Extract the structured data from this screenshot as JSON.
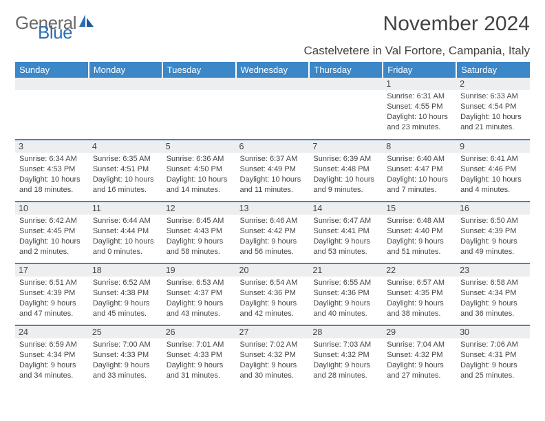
{
  "brand": {
    "name_a": "General",
    "name_b": "Blue",
    "color_a": "#6a6a6a",
    "color_b": "#2a6fb5"
  },
  "title": "November 2024",
  "location": "Castelvetere in Val Fortore, Campania, Italy",
  "dow": [
    "Sunday",
    "Monday",
    "Tuesday",
    "Wednesday",
    "Thursday",
    "Friday",
    "Saturday"
  ],
  "colors": {
    "header_bg": "#3b87c8",
    "header_text": "#ffffff",
    "row_border": "#3b87c8",
    "daynum_bg": "#eceef0",
    "text": "#444444",
    "background": "#ffffff"
  },
  "layout": {
    "first_weekday_index": 5,
    "days_in_month": 30,
    "weeks": 5
  },
  "days": {
    "1": {
      "sunrise": "6:31 AM",
      "sunset": "4:55 PM",
      "daylight": "10 hours and 23 minutes."
    },
    "2": {
      "sunrise": "6:33 AM",
      "sunset": "4:54 PM",
      "daylight": "10 hours and 21 minutes."
    },
    "3": {
      "sunrise": "6:34 AM",
      "sunset": "4:53 PM",
      "daylight": "10 hours and 18 minutes."
    },
    "4": {
      "sunrise": "6:35 AM",
      "sunset": "4:51 PM",
      "daylight": "10 hours and 16 minutes."
    },
    "5": {
      "sunrise": "6:36 AM",
      "sunset": "4:50 PM",
      "daylight": "10 hours and 14 minutes."
    },
    "6": {
      "sunrise": "6:37 AM",
      "sunset": "4:49 PM",
      "daylight": "10 hours and 11 minutes."
    },
    "7": {
      "sunrise": "6:39 AM",
      "sunset": "4:48 PM",
      "daylight": "10 hours and 9 minutes."
    },
    "8": {
      "sunrise": "6:40 AM",
      "sunset": "4:47 PM",
      "daylight": "10 hours and 7 minutes."
    },
    "9": {
      "sunrise": "6:41 AM",
      "sunset": "4:46 PM",
      "daylight": "10 hours and 4 minutes."
    },
    "10": {
      "sunrise": "6:42 AM",
      "sunset": "4:45 PM",
      "daylight": "10 hours and 2 minutes."
    },
    "11": {
      "sunrise": "6:44 AM",
      "sunset": "4:44 PM",
      "daylight": "10 hours and 0 minutes."
    },
    "12": {
      "sunrise": "6:45 AM",
      "sunset": "4:43 PM",
      "daylight": "9 hours and 58 minutes."
    },
    "13": {
      "sunrise": "6:46 AM",
      "sunset": "4:42 PM",
      "daylight": "9 hours and 56 minutes."
    },
    "14": {
      "sunrise": "6:47 AM",
      "sunset": "4:41 PM",
      "daylight": "9 hours and 53 minutes."
    },
    "15": {
      "sunrise": "6:48 AM",
      "sunset": "4:40 PM",
      "daylight": "9 hours and 51 minutes."
    },
    "16": {
      "sunrise": "6:50 AM",
      "sunset": "4:39 PM",
      "daylight": "9 hours and 49 minutes."
    },
    "17": {
      "sunrise": "6:51 AM",
      "sunset": "4:39 PM",
      "daylight": "9 hours and 47 minutes."
    },
    "18": {
      "sunrise": "6:52 AM",
      "sunset": "4:38 PM",
      "daylight": "9 hours and 45 minutes."
    },
    "19": {
      "sunrise": "6:53 AM",
      "sunset": "4:37 PM",
      "daylight": "9 hours and 43 minutes."
    },
    "20": {
      "sunrise": "6:54 AM",
      "sunset": "4:36 PM",
      "daylight": "9 hours and 42 minutes."
    },
    "21": {
      "sunrise": "6:55 AM",
      "sunset": "4:36 PM",
      "daylight": "9 hours and 40 minutes."
    },
    "22": {
      "sunrise": "6:57 AM",
      "sunset": "4:35 PM",
      "daylight": "9 hours and 38 minutes."
    },
    "23": {
      "sunrise": "6:58 AM",
      "sunset": "4:34 PM",
      "daylight": "9 hours and 36 minutes."
    },
    "24": {
      "sunrise": "6:59 AM",
      "sunset": "4:34 PM",
      "daylight": "9 hours and 34 minutes."
    },
    "25": {
      "sunrise": "7:00 AM",
      "sunset": "4:33 PM",
      "daylight": "9 hours and 33 minutes."
    },
    "26": {
      "sunrise": "7:01 AM",
      "sunset": "4:33 PM",
      "daylight": "9 hours and 31 minutes."
    },
    "27": {
      "sunrise": "7:02 AM",
      "sunset": "4:32 PM",
      "daylight": "9 hours and 30 minutes."
    },
    "28": {
      "sunrise": "7:03 AM",
      "sunset": "4:32 PM",
      "daylight": "9 hours and 28 minutes."
    },
    "29": {
      "sunrise": "7:04 AM",
      "sunset": "4:32 PM",
      "daylight": "9 hours and 27 minutes."
    },
    "30": {
      "sunrise": "7:06 AM",
      "sunset": "4:31 PM",
      "daylight": "9 hours and 25 minutes."
    }
  },
  "labels": {
    "sunrise_prefix": "Sunrise: ",
    "sunset_prefix": "Sunset: ",
    "daylight_prefix": "Daylight: "
  }
}
